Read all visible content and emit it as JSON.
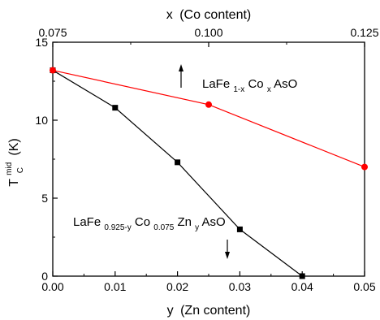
{
  "chart_data": {
    "type": "line",
    "bottom_axis": {
      "label_prefix": "y",
      "label_suffix": "(Zn content)",
      "range": [
        0,
        0.05
      ],
      "ticks": [
        "0.00",
        "0.01",
        "0.02",
        "0.03",
        "0.04",
        "0.05"
      ]
    },
    "top_axis": {
      "label_prefix": "x",
      "label_suffix": "(Co content)",
      "range": [
        0.075,
        0.125
      ],
      "ticks": [
        "0.075",
        "0.100",
        "0.125"
      ]
    },
    "left_axis": {
      "label_base": "T",
      "label_sup": "mid",
      "label_sub": "C",
      "label_unit": "(K)",
      "range": [
        0,
        15
      ],
      "ticks": [
        "0",
        "5",
        "10",
        "15"
      ]
    },
    "series": [
      {
        "axis": "bottom",
        "color": "#000000",
        "marker": "square",
        "x": [
          0.0,
          0.01,
          0.02,
          0.03,
          0.04
        ],
        "y": [
          13.2,
          10.8,
          7.3,
          3.0,
          0.0
        ],
        "label": {
          "base": "LaFe",
          "sub1": "0.925-y",
          "mid1": "Co",
          "sub2": "0.075",
          "mid2": "Zn",
          "sub3": "y",
          "tail": "AsO"
        },
        "arrow": "down"
      },
      {
        "axis": "top",
        "color": "#ff0000",
        "marker": "circle",
        "x": [
          0.075,
          0.1,
          0.125
        ],
        "y": [
          13.2,
          11.0,
          7.0
        ],
        "label": {
          "base": "LaFe",
          "sub1": "1-x",
          "mid1": "Co",
          "sub2": "x",
          "tail": "AsO"
        },
        "arrow": "up"
      }
    ]
  }
}
